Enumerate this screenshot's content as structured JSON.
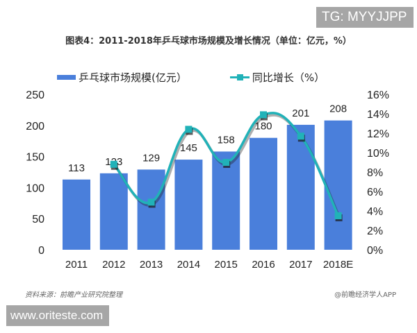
{
  "badges": {
    "top_right": "TG: MYYJJPP",
    "bottom_left": "www.oriteste.com"
  },
  "title": "图表4：2011-2018年乒乓球市场规模及增长情况（单位：亿元，%）",
  "legend": {
    "bar_label": "乒乓球市场规模(亿元）",
    "line_label": "同比增长（%）"
  },
  "footer": {
    "source": "资料来源：前瞻产业研究院整理",
    "credit": "@前瞻经济学人APP"
  },
  "colors": {
    "bar": "#4a7fdb",
    "line": "#21b2b8",
    "marker_shadow": "#1a1a1a"
  },
  "chart_data": {
    "type": "bar",
    "title": "图表4：2011-2018年乒乓球市场规模及增长情况（单位：亿元，%）",
    "categories": [
      "2011",
      "2012",
      "2013",
      "2014",
      "2015",
      "2016",
      "2017",
      "2018E"
    ],
    "series": [
      {
        "name": "乒乓球市场规模(亿元）",
        "type": "bar",
        "axis": "left",
        "values": [
          113,
          123,
          129,
          145,
          158,
          180,
          201,
          208
        ]
      },
      {
        "name": "同比增长（%）",
        "type": "line",
        "axis": "right",
        "smooth": true,
        "values": [
          null,
          8.8,
          4.9,
          12.4,
          9.0,
          13.9,
          11.7,
          3.5
        ]
      }
    ],
    "left_axis": {
      "ticks": [
        "0",
        "50",
        "100",
        "150",
        "200",
        "250"
      ],
      "ylim": [
        0,
        250
      ]
    },
    "right_axis": {
      "ticks": [
        "0%",
        "2%",
        "4%",
        "6%",
        "8%",
        "10%",
        "12%",
        "14%",
        "16%"
      ],
      "ylim": [
        0,
        16
      ]
    },
    "xlabel": "",
    "ylabel": "",
    "grid": false,
    "legend_position": "top",
    "data_labels": [
      "113",
      "123",
      "129",
      "145",
      "158",
      "180",
      "201",
      "208"
    ]
  }
}
